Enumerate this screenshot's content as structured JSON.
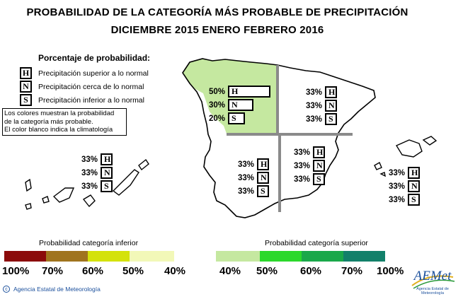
{
  "title": {
    "line1": "PROBABILIDAD DE LA CATEGORÍA MÁS PROBABLE DE PRECIPITACIÓN",
    "line2": "DICIEMBRE 2015  ENERO  FEBRERO 2016"
  },
  "legend": {
    "heading": "Porcentaje de probabilidad:",
    "items": [
      {
        "letter": "H",
        "text": "Precipitación superior a lo normal"
      },
      {
        "letter": "N",
        "text": "Precipitación cerca de lo normal"
      },
      {
        "letter": "S",
        "text": "Precipitación inferior a lo normal"
      }
    ]
  },
  "note": {
    "line1": "Los colores muestran la probabilidad",
    "line2": "de la categoría más probable.",
    "line3": "El color blanco indica la climatología"
  },
  "regions": [
    {
      "id": "northwest",
      "H": "50%",
      "N": "30%",
      "S": "20%",
      "fill": "#c5e8a0"
    },
    {
      "id": "northeast",
      "H": "33%",
      "N": "33%",
      "S": "33%",
      "fill": "#ffffff"
    },
    {
      "id": "southwest",
      "H": "33%",
      "N": "33%",
      "S": "33%",
      "fill": "#ffffff"
    },
    {
      "id": "southeast",
      "H": "33%",
      "N": "33%",
      "S": "33%",
      "fill": "#ffffff"
    },
    {
      "id": "canarias",
      "H": "33%",
      "N": "33%",
      "S": "33%",
      "fill": "#ffffff"
    },
    {
      "id": "baleares",
      "H": "33%",
      "N": "33%",
      "S": "33%",
      "fill": "#ffffff"
    }
  ],
  "colorbar_inferior": {
    "label": "Probabilidad categoría inferior",
    "colors": [
      "#8b0a0a",
      "#a0741e",
      "#d4e20a",
      "#f2f8b8"
    ],
    "ticks": [
      "100%",
      "70%",
      "60%",
      "50%",
      "40%"
    ]
  },
  "colorbar_superior": {
    "label": "Probabilidad categoría superior",
    "colors": [
      "#c5e8a0",
      "#2bd82b",
      "#1aa84a",
      "#12806a"
    ],
    "ticks": [
      "40%",
      "50%",
      "60%",
      "70%",
      "100%"
    ]
  },
  "footer": {
    "icon": "copyright-icon",
    "text": "Agencia Estatal de Meteorología"
  },
  "logo": {
    "text": "AEMet",
    "subtext": "Agencia Estatal de Meteorología"
  }
}
